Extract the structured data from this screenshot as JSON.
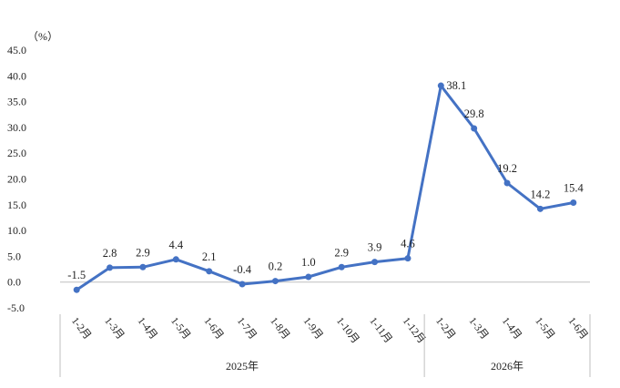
{
  "chart_data": {
    "type": "line",
    "unit_label": "（%）",
    "y_ticks": [
      "45.0",
      "40.0",
      "35.0",
      "30.0",
      "25.0",
      "20.0",
      "15.0",
      "10.0",
      "5.0",
      "0.0",
      "-5.0"
    ],
    "ylim": [
      -5,
      45
    ],
    "categories": [
      "1-2月",
      "1-3月",
      "1-4月",
      "1-5月",
      "1-6月",
      "1-7月",
      "1-8月",
      "1-9月",
      "1-10月",
      "1-11月",
      "1-12月",
      "1-2月",
      "1-3月",
      "1-4月",
      "1-5月",
      "1-6月"
    ],
    "groups": [
      {
        "label": "2025年",
        "span": [
          0,
          10
        ]
      },
      {
        "label": "2026年",
        "span": [
          11,
          15
        ]
      }
    ],
    "series": [
      {
        "values": [
          -1.5,
          2.8,
          2.9,
          4.4,
          2.1,
          -0.4,
          0.2,
          1.0,
          2.9,
          3.9,
          4.6,
          38.1,
          29.8,
          19.2,
          14.2,
          15.4
        ],
        "labels": [
          "-1.5",
          "2.8",
          "2.9",
          "4.4",
          "2.1",
          "-0.4",
          "0.2",
          "1.0",
          "2.9",
          "3.9",
          "4.6",
          "38.1",
          "29.8",
          "19.2",
          "14.2",
          "15.4"
        ]
      }
    ],
    "line_color": "#4472C4",
    "grid": false
  }
}
